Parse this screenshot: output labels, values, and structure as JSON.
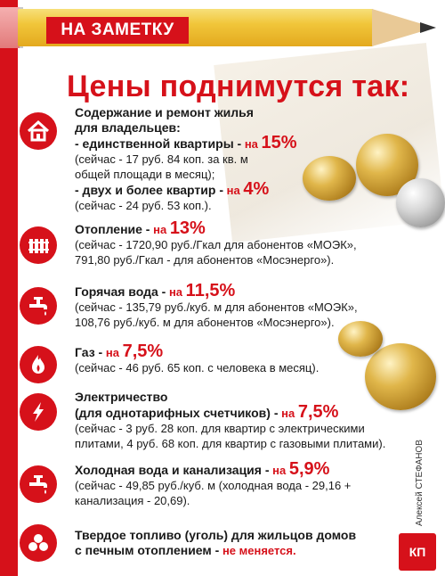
{
  "badge": "НА ЗАМЕТКУ",
  "headline": "Цены поднимутся так:",
  "items": [
    {
      "icon": "house-icon",
      "line1": "Содержание и ремонт жилья",
      "line2": "для владельцев:",
      "sub1_label": "- единственной квартиры -",
      "sub1_on": "на",
      "sub1_pct": "15%",
      "sub1_note1": "(сейчас - 17 руб. 84 коп. за кв. м",
      "sub1_note2": "общей площади в месяц);",
      "sub2_label": "- двух и более квартир -",
      "sub2_on": "на",
      "sub2_pct": "4%",
      "sub2_note": "(сейчас - 24 руб. 53 коп.)."
    },
    {
      "icon": "radiator-icon",
      "label": "Отопление -",
      "on": "на",
      "pct": "13%",
      "note1": "(сейчас - 1720,90 руб./Гкал для абонентов «МОЭК»,",
      "note2": "791,80 руб./Гкал - для абонентов «Мосэнерго»)."
    },
    {
      "icon": "hot-water-tap-icon",
      "label": "Горячая вода -",
      "on": "на",
      "pct": "11,5%",
      "note1": "(сейчас - 135,79 руб./куб. м для абонентов «МОЭК»,",
      "note2": "108,76 руб./куб. м для абонентов «Мосэнерго»)."
    },
    {
      "icon": "gas-flame-icon",
      "label": "Газ -",
      "on": "на",
      "pct": "7,5%",
      "note1": "(сейчас - 46 руб. 65 коп. с человека в месяц)."
    },
    {
      "icon": "lightning-icon",
      "label1": "Электричество",
      "label2": "(для однотарифных счетчиков) -",
      "on": "на",
      "pct": "7,5%",
      "note1": "(сейчас - 3 руб. 28 коп. для квартир с электрическими",
      "note2": "плитами, 4 руб. 68 коп. для квартир с газовыми плитами)."
    },
    {
      "icon": "cold-water-tap-icon",
      "label": "Холодная вода и канализация -",
      "on": "на",
      "pct": "5,9%",
      "note1": "(сейчас - 49,85 руб./куб. м (холодная вода - 29,16 +",
      "note2": "канализация - 20,69)."
    },
    {
      "icon": "coal-icon",
      "label1": "Твердое топливо (уголь) для жильцов домов",
      "label2": "с печным отоплением -",
      "status": "не меняется."
    }
  ],
  "credit": "Алексей СТЕФАНОВ",
  "logo": "КП",
  "colors": {
    "accent": "#d6111a",
    "pencil": "#f1c63a"
  }
}
